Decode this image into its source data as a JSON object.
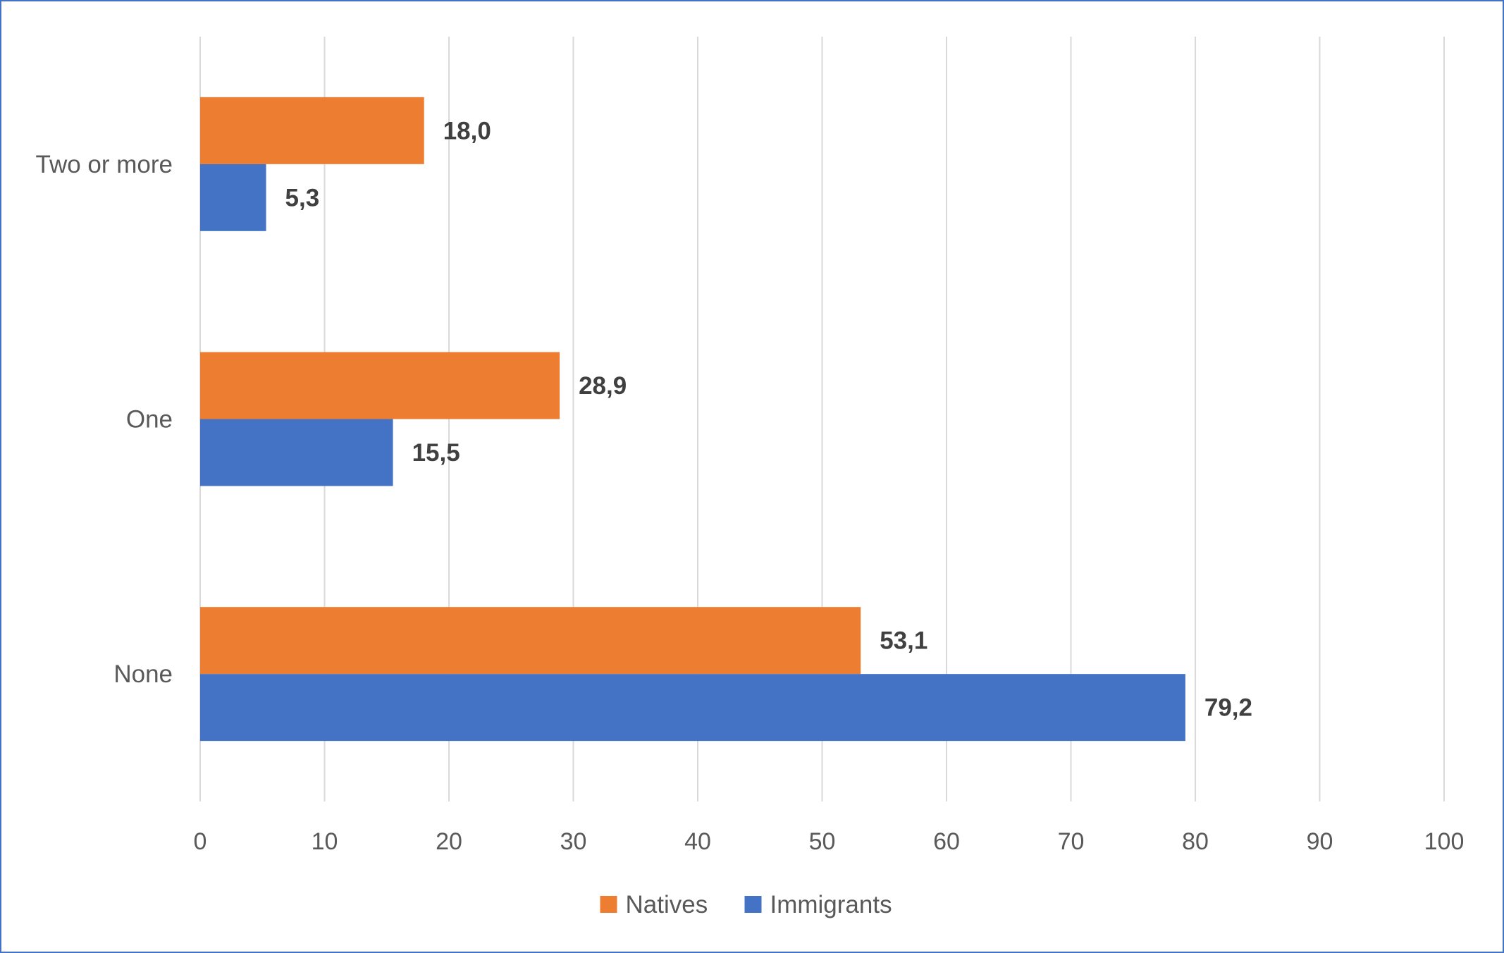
{
  "chart_data": {
    "type": "bar",
    "orientation": "horizontal",
    "categories": [
      "Two or more",
      "One",
      "None"
    ],
    "series": [
      {
        "name": "Natives",
        "color": "#ed7d31",
        "values": [
          18.0,
          28.9,
          53.1
        ],
        "labels": [
          "18,0",
          "28,9",
          "53,1"
        ]
      },
      {
        "name": "Immigrants",
        "color": "#4472c4",
        "values": [
          5.3,
          15.5,
          79.2
        ],
        "labels": [
          "5,3",
          "15,5",
          "79,2"
        ]
      }
    ],
    "xlim": [
      0,
      100
    ],
    "xticks": [
      0,
      10,
      20,
      30,
      40,
      50,
      60,
      70,
      80,
      90,
      100
    ],
    "grid": "vertical",
    "legend_position": "bottom",
    "title": "",
    "xlabel": "",
    "ylabel": ""
  }
}
